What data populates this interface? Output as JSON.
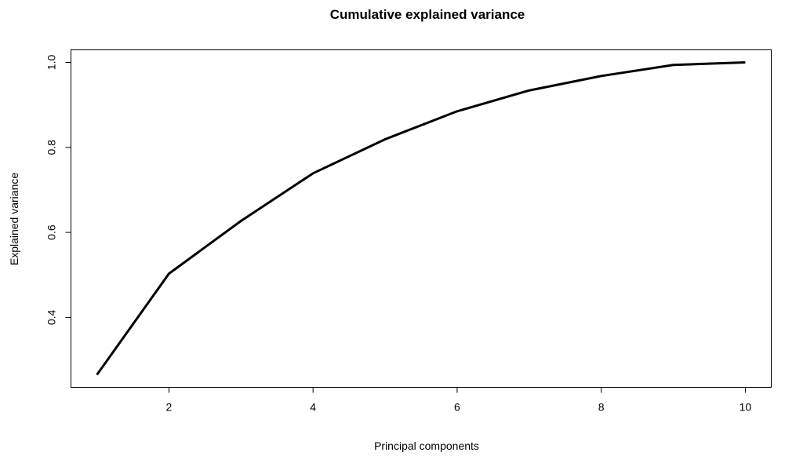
{
  "chart_data": {
    "type": "line",
    "title": "Cumulative explained variance",
    "xlabel": "Principal components",
    "ylabel": "Explained variance",
    "x": [
      1,
      2,
      3,
      4,
      5,
      6,
      7,
      8,
      9,
      10
    ],
    "series": [
      {
        "values": [
          0.265,
          0.503,
          0.627,
          0.739,
          0.819,
          0.885,
          0.934,
          0.968,
          0.994,
          1.0
        ],
        "color": "#000000"
      }
    ],
    "xlim": [
      0.64,
      10.36
    ],
    "ylim": [
      0.2355,
      1.0295
    ],
    "xticks": [
      2,
      4,
      6,
      8,
      10
    ],
    "xtick_labels": [
      "2",
      "4",
      "6",
      "8",
      "10"
    ],
    "yticks": [
      0.4,
      0.6,
      0.8,
      1.0
    ],
    "ytick_labels": [
      "0.4",
      "0.6",
      "0.8",
      "1.0"
    ],
    "grid": false,
    "legend": "none"
  }
}
